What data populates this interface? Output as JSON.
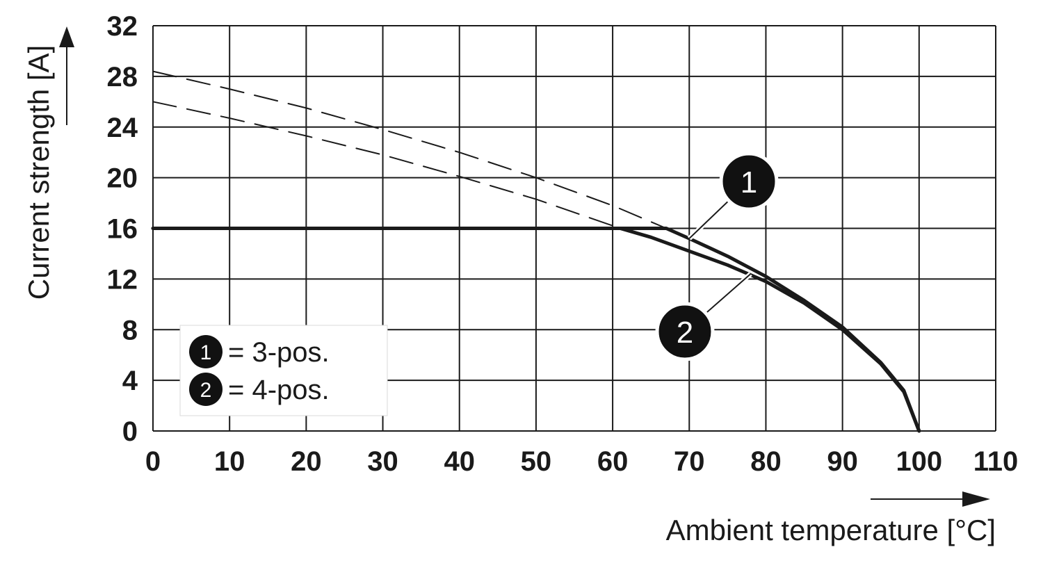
{
  "chart_data": {
    "type": "line",
    "title": "",
    "xlabel": "Ambient temperature [°C]",
    "ylabel": "Current strength [A]",
    "xlim": [
      0,
      110
    ],
    "ylim": [
      0,
      32
    ],
    "x_ticks": [
      "0",
      "10",
      "20",
      "30",
      "40",
      "50",
      "60",
      "70",
      "80",
      "90",
      "100",
      "110"
    ],
    "y_ticks": [
      "0",
      "4",
      "8",
      "12",
      "16",
      "20",
      "24",
      "28",
      "32"
    ],
    "grid": true,
    "legend_position": "bottom-left",
    "legend": [
      {
        "marker": "1",
        "label": "= 3-pos."
      },
      {
        "marker": "2",
        "label": "= 4-pos."
      }
    ],
    "series": [
      {
        "marker": "1",
        "style": "solid",
        "x": [
          0,
          67,
          70,
          75,
          80,
          85,
          90,
          95,
          98,
          100
        ],
        "y": [
          16,
          16,
          15.2,
          13.8,
          12.2,
          10.3,
          8.2,
          5.4,
          3.2,
          0
        ]
      },
      {
        "marker": "2",
        "style": "solid",
        "x": [
          0,
          61,
          65,
          70,
          75,
          80,
          85,
          90,
          95,
          98,
          100
        ],
        "y": [
          16,
          16,
          15.3,
          14.2,
          13.1,
          11.8,
          10.1,
          8.0,
          5.3,
          3.1,
          0
        ]
      },
      {
        "marker": "1",
        "style": "dashed",
        "x": [
          0,
          10,
          20,
          30,
          40,
          50,
          60,
          67
        ],
        "y": [
          28.4,
          27.0,
          25.5,
          23.8,
          22.0,
          20.0,
          17.8,
          16.0
        ]
      },
      {
        "marker": "2",
        "style": "dashed",
        "x": [
          0,
          10,
          20,
          30,
          40,
          50,
          61
        ],
        "y": [
          26.0,
          24.7,
          23.3,
          21.8,
          20.1,
          18.3,
          16.0
        ]
      }
    ],
    "callouts": [
      {
        "marker": "1",
        "point": [
          70,
          15.2
        ]
      },
      {
        "marker": "2",
        "point": [
          78,
          12.4
        ]
      }
    ]
  }
}
